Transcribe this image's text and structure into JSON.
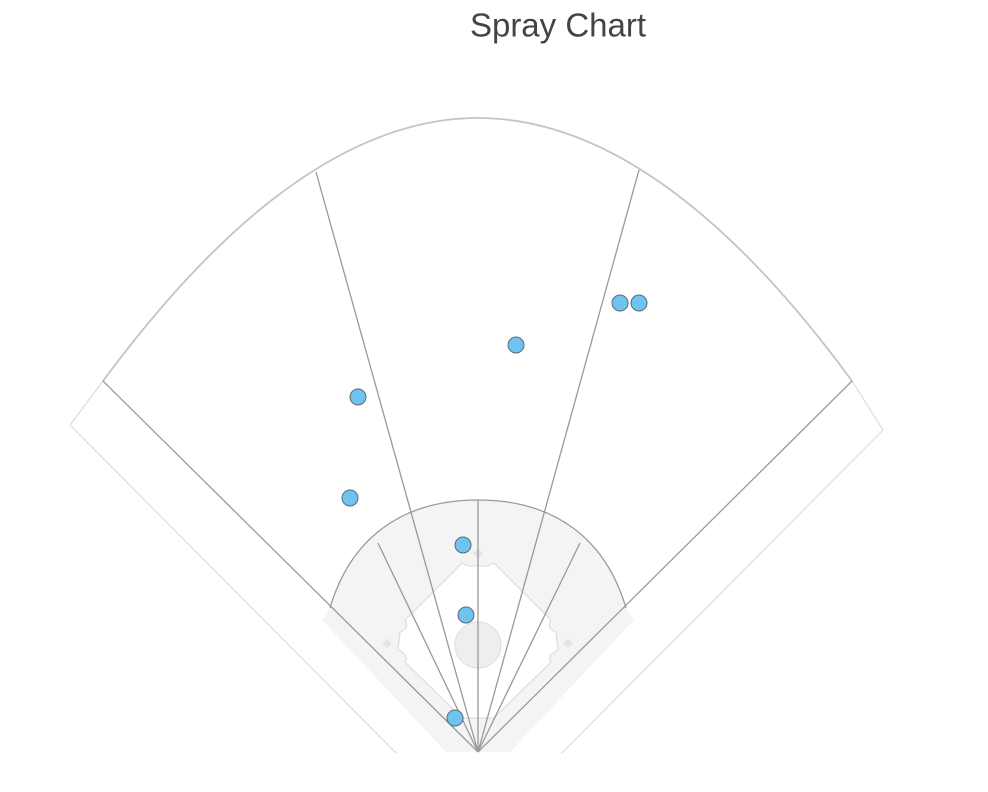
{
  "chart_data": {
    "type": "scatter",
    "title": "Spray Chart",
    "x": [
      -120,
      -128,
      -15,
      -12,
      -23,
      38,
      142,
      161
    ],
    "values": [
      353,
      252,
      205,
      135,
      32,
      405,
      447,
      447
    ],
    "color": "#6ec3f0",
    "xlim": [
      -478,
      510
    ],
    "ylim": [
      0,
      750
    ]
  }
}
